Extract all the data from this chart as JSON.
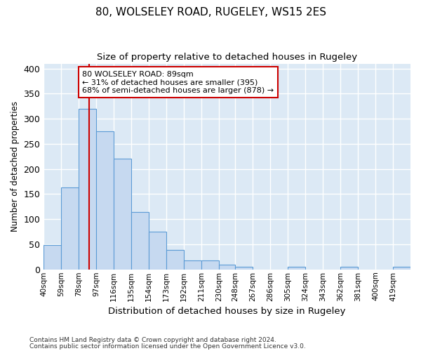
{
  "title1": "80, WOLSELEY ROAD, RUGELEY, WS15 2ES",
  "title2": "Size of property relative to detached houses in Rugeley",
  "xlabel": "Distribution of detached houses by size in Rugeley",
  "ylabel": "Number of detached properties",
  "bin_labels": [
    "40sqm",
    "59sqm",
    "78sqm",
    "97sqm",
    "116sqm",
    "135sqm",
    "154sqm",
    "173sqm",
    "192sqm",
    "211sqm",
    "230sqm",
    "248sqm",
    "267sqm",
    "286sqm",
    "305sqm",
    "324sqm",
    "343sqm",
    "362sqm",
    "381sqm",
    "400sqm",
    "419sqm"
  ],
  "bin_edges": [
    40,
    59,
    78,
    97,
    116,
    135,
    154,
    173,
    192,
    211,
    230,
    248,
    267,
    286,
    305,
    324,
    343,
    362,
    381,
    400,
    419,
    438
  ],
  "bar_heights": [
    48,
    163,
    320,
    275,
    220,
    115,
    75,
    39,
    18,
    18,
    10,
    5,
    0,
    0,
    5,
    0,
    0,
    5,
    0,
    0,
    5
  ],
  "bar_color": "#c6d9f0",
  "bar_edge_color": "#5b9bd5",
  "property_size": 89,
  "red_line_color": "#cc0000",
  "annotation_text": "80 WOLSELEY ROAD: 89sqm\n← 31% of detached houses are smaller (395)\n68% of semi-detached houses are larger (878) →",
  "annotation_box_color": "#ffffff",
  "annotation_box_edge": "#cc0000",
  "plot_bg_color": "#dce9f5",
  "fig_bg_color": "#ffffff",
  "grid_color": "#ffffff",
  "footer1": "Contains HM Land Registry data © Crown copyright and database right 2024.",
  "footer2": "Contains public sector information licensed under the Open Government Licence v3.0.",
  "ylim": [
    0,
    410
  ],
  "yticks": [
    0,
    50,
    100,
    150,
    200,
    250,
    300,
    350,
    400
  ]
}
